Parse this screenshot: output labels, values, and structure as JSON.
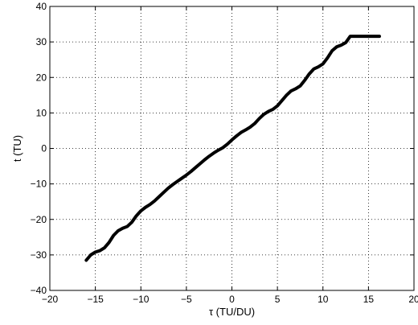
{
  "chart_data": {
    "type": "line",
    "title": "",
    "xlabel": "τ (TU/DU)",
    "ylabel": "t (TU)",
    "xlim": [
      -20,
      20
    ],
    "ylim": [
      -40,
      40
    ],
    "xticks": [
      -20,
      -15,
      -10,
      -5,
      0,
      5,
      10,
      15,
      20
    ],
    "yticks": [
      -40,
      -30,
      -20,
      -10,
      0,
      10,
      20,
      30,
      40
    ],
    "xtick_labels": [
      "−20",
      "−15",
      "−10",
      "−5",
      "0",
      "5",
      "10",
      "15",
      "20"
    ],
    "ytick_labels": [
      "−40",
      "−30",
      "−20",
      "−10",
      "0",
      "10",
      "20",
      "30",
      "40"
    ],
    "grid": true,
    "grid_style": "dotted",
    "line_color": "#000000",
    "series": [
      {
        "x": [
          -16.0,
          -15.5,
          -15.0,
          -14.5,
          -14.0,
          -13.5,
          -13.0,
          -12.5,
          -12.0,
          -11.5,
          -11.0,
          -10.5,
          -10.0,
          -9.5,
          -9.0,
          -8.5,
          -8.0,
          -7.5,
          -7.0,
          -6.5,
          -6.0,
          -5.5,
          -5.0,
          -4.5,
          -4.0,
          -3.5,
          -3.0,
          -2.5,
          -2.0,
          -1.5,
          -1.0,
          -0.5,
          0.0,
          0.5,
          1.0,
          1.5,
          2.0,
          2.5,
          3.0,
          3.5,
          4.0,
          4.5,
          5.0,
          5.5,
          6.0,
          6.5,
          7.0,
          7.5,
          8.0,
          8.5,
          9.0,
          9.5,
          10.0,
          10.5,
          11.0,
          11.5,
          12.0,
          12.5,
          13.0,
          13.5,
          14.0,
          14.5,
          15.0,
          15.5,
          16.0,
          16.2
        ],
        "y": [
          -31.5,
          -30.0,
          -29.2,
          -28.8,
          -28.0,
          -26.5,
          -24.5,
          -23.2,
          -22.5,
          -22.0,
          -20.8,
          -19.0,
          -17.6,
          -16.6,
          -15.8,
          -14.8,
          -13.6,
          -12.4,
          -11.2,
          -10.2,
          -9.3,
          -8.4,
          -7.5,
          -6.5,
          -5.4,
          -4.3,
          -3.2,
          -2.2,
          -1.3,
          -0.5,
          0.2,
          1.2,
          2.4,
          3.5,
          4.5,
          5.2,
          6.0,
          7.0,
          8.4,
          9.6,
          10.4,
          11.0,
          12.0,
          13.5,
          15.0,
          16.2,
          16.8,
          17.6,
          19.2,
          21.0,
          22.4,
          23.0,
          23.8,
          25.5,
          27.5,
          28.6,
          29.1,
          29.8,
          31.6,
          31.6,
          31.6,
          31.6,
          31.6,
          31.6,
          31.6,
          31.6
        ]
      }
    ]
  }
}
